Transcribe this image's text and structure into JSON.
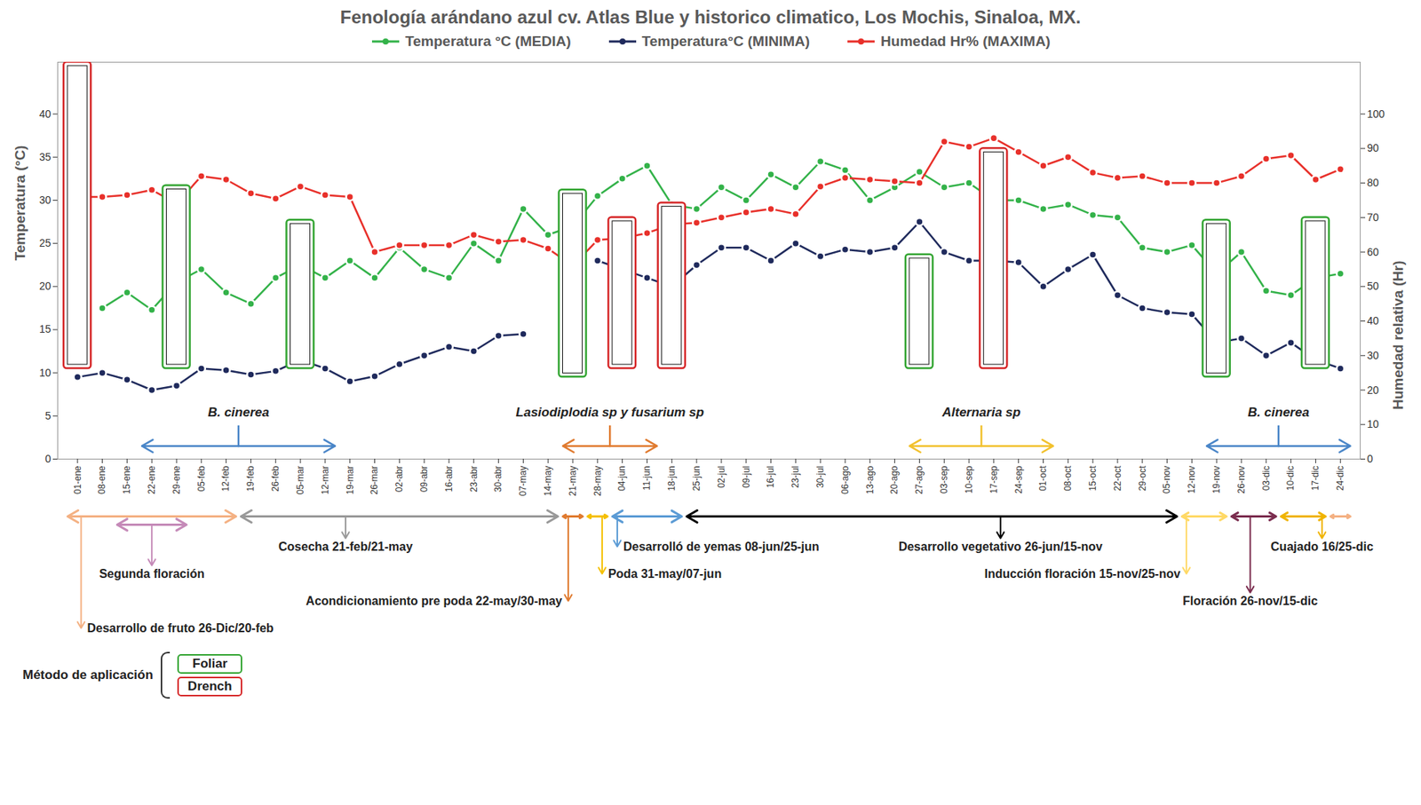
{
  "chart_data": {
    "type": "line",
    "title": "Fenología arándano azul cv. Atlas Blue y historico climatico, Los Mochis, Sinaloa, MX.",
    "y_label": "Temperatura (°C)",
    "y2_label": "Humedad relativa (Hr)",
    "categories": [
      "01-ene",
      "08-ene",
      "15-ene",
      "22-ene",
      "29-ene",
      "05-feb",
      "12-feb",
      "19-feb",
      "26-feb",
      "05-mar",
      "12-mar",
      "19-mar",
      "26-mar",
      "02-abr",
      "09-abr",
      "16-abr",
      "23-abr",
      "30-abr",
      "07-may",
      "14-may",
      "21-may",
      "28-may",
      "04-jun",
      "11-jun",
      "18-jun",
      "25-jun",
      "02-jul",
      "09-jul",
      "16-jul",
      "23-jul",
      "30-jul",
      "06-ago",
      "13-ago",
      "20-ago",
      "27-ago",
      "03-sep",
      "10-sep",
      "17-sep",
      "24-sep",
      "01-oct",
      "08-oct",
      "15-oct",
      "22-oct",
      "29-oct",
      "05-nov",
      "12-nov",
      "19-nov",
      "26-nov",
      "03-dic",
      "10-dic",
      "17-dic",
      "24-dic"
    ],
    "series": [
      {
        "name": "Temperatura °C (MEDIA)",
        "color": "#33b249",
        "marker": "circle",
        "axis": "y",
        "values": [
          null,
          17.5,
          19.3,
          17.3,
          20.5,
          22,
          19.3,
          18,
          21,
          22.5,
          21,
          23,
          21,
          24.5,
          22,
          21,
          25,
          23,
          29,
          26,
          27,
          30.5,
          32.5,
          34,
          29.5,
          29,
          31.5,
          30,
          33,
          31.5,
          34.5,
          33.5,
          30,
          31.5,
          33.3,
          31.5,
          32,
          30,
          30,
          29,
          29.5,
          28.3,
          28,
          24.5,
          24,
          24.8,
          21.5,
          24,
          19.5,
          19,
          21,
          21.5
        ]
      },
      {
        "name": "Temperatura°C (MINIMA)",
        "color": "#1f2a5c",
        "marker": "circle",
        "axis": "y",
        "values": [
          9.5,
          10,
          9.2,
          8,
          8.5,
          10.5,
          10.3,
          9.8,
          10.2,
          11.5,
          10.5,
          9,
          9.6,
          11,
          12,
          13,
          12.5,
          14.3,
          14.5,
          null,
          null,
          23,
          22,
          21,
          20,
          22.5,
          24.5,
          24.5,
          23,
          25,
          23.5,
          24.3,
          24,
          24.5,
          27.5,
          24,
          23,
          23,
          22.8,
          20,
          22,
          23.7,
          19,
          17.5,
          17,
          16.8,
          13.5,
          14,
          12,
          13.5,
          11.5,
          10.5
        ]
      },
      {
        "name": "Humedad Hr% (MAXIMA)",
        "color": "#e8302a",
        "marker": "circle",
        "axis": "y2",
        "values": [
          76,
          76,
          76.5,
          78,
          74,
          82,
          81,
          77,
          75.5,
          79,
          76.5,
          76,
          60,
          62,
          62,
          62,
          65,
          63,
          63.5,
          61,
          56,
          63.5,
          64,
          65.5,
          68,
          68.5,
          70,
          71.5,
          72.5,
          71,
          79,
          81.5,
          81,
          80.5,
          80,
          92,
          90.5,
          93,
          89,
          85,
          87.5,
          83,
          81.5,
          82,
          80,
          80,
          80,
          82,
          87,
          88,
          81,
          84
        ]
      }
    ],
    "ylim": [
      0,
      46
    ],
    "yticks": [
      0,
      5,
      10,
      15,
      20,
      25,
      30,
      35,
      40
    ],
    "y2lim": [
      0,
      115
    ],
    "y2ticks": [
      0,
      10,
      20,
      30,
      40,
      50,
      60,
      70,
      80,
      90,
      100
    ],
    "grid": false,
    "legend": "top",
    "applications": {
      "title": "Método de aplicación",
      "methods": [
        {
          "name": "Foliar",
          "color": "#33a532"
        },
        {
          "name": "Drench",
          "color": "#d62728"
        }
      ],
      "items": [
        {
          "category": "01-ene",
          "method": "Drench",
          "from": 10.5,
          "to": 46
        },
        {
          "category": "29-ene",
          "method": "Foliar",
          "from": 10.5,
          "to": 31.7
        },
        {
          "category": "05-mar",
          "method": "Foliar",
          "from": 10.5,
          "to": 27.7
        },
        {
          "category": "21-may",
          "method": "Foliar",
          "from": 9.5,
          "to": 31.2
        },
        {
          "category": "04-jun",
          "method": "Drench",
          "from": 10.5,
          "to": 28
        },
        {
          "category": "18-jun",
          "method": "Drench",
          "from": 10.5,
          "to": 29.7
        },
        {
          "category": "27-ago",
          "method": "Foliar",
          "from": 10.5,
          "to": 23.7
        },
        {
          "category": "17-sep",
          "method": "Drench",
          "from": 10.5,
          "to": 36
        },
        {
          "category": "19-nov",
          "method": "Foliar",
          "from": 9.5,
          "to": 27.7
        },
        {
          "category": "17-dic",
          "method": "Foliar",
          "from": 10.5,
          "to": 28
        }
      ]
    },
    "pathogens": [
      {
        "name": "B. cinerea",
        "start": "22-ene",
        "end": "12-mar",
        "color": "#4a86c8"
      },
      {
        "name": "Lasiodiplodia sp y fusarium sp",
        "start": "21-may",
        "end": "11-jun",
        "color": "#e07b30"
      },
      {
        "name": "Alternaria sp",
        "start": "27-ago",
        "end": "01-oct",
        "color": "#f2c12e"
      },
      {
        "name": "B. cinerea",
        "start": "19-nov",
        "end": "24-dic",
        "color": "#4a86c8"
      }
    ],
    "phenology": [
      {
        "label": "Desarrollo de fruto 26-Dic/20-feb",
        "color": "#f4b183",
        "segments": [
          [
            "01-ene",
            "12-feb"
          ],
          [
            "24-dic",
            "24-dic"
          ]
        ]
      },
      {
        "label": "Segunda floración",
        "color": "#c58ab8",
        "segments": [
          [
            "15-ene",
            "29-ene"
          ]
        ]
      },
      {
        "label": "Cosecha 21-feb/21-may",
        "color": "#999999",
        "segments": [
          [
            "19-feb",
            "14-may"
          ]
        ]
      },
      {
        "label": "Acondicionamiento pre poda 22-may/30-may",
        "color": "#e07b30",
        "segments": [
          [
            "21-may",
            "21-may"
          ]
        ]
      },
      {
        "label": "Poda 31-may/07-jun",
        "color": "#f5c000",
        "segments": [
          [
            "28-may",
            "28-may"
          ]
        ]
      },
      {
        "label": "Desarrolló de yemas 08-jun/25-jun",
        "color": "#5b9bd5",
        "segments": [
          [
            "04-jun",
            "18-jun"
          ]
        ]
      },
      {
        "label": "Desarrollo vegetativo 26-jun/15-nov",
        "color": "#000000",
        "segments": [
          [
            "25-jun",
            "05-nov"
          ]
        ]
      },
      {
        "label": "Inducción floración 15-nov/25-nov",
        "color": "#ffd966",
        "segments": [
          [
            "12-nov",
            "19-nov"
          ]
        ]
      },
      {
        "label": "Floración 26-nov/15-dic",
        "color": "#7b2d4f",
        "segments": [
          [
            "26-nov",
            "03-dic"
          ]
        ]
      },
      {
        "label": "Cuajado 16/25-dic",
        "color": "#f0b400",
        "segments": [
          [
            "10-dic",
            "17-dic"
          ]
        ]
      }
    ]
  }
}
